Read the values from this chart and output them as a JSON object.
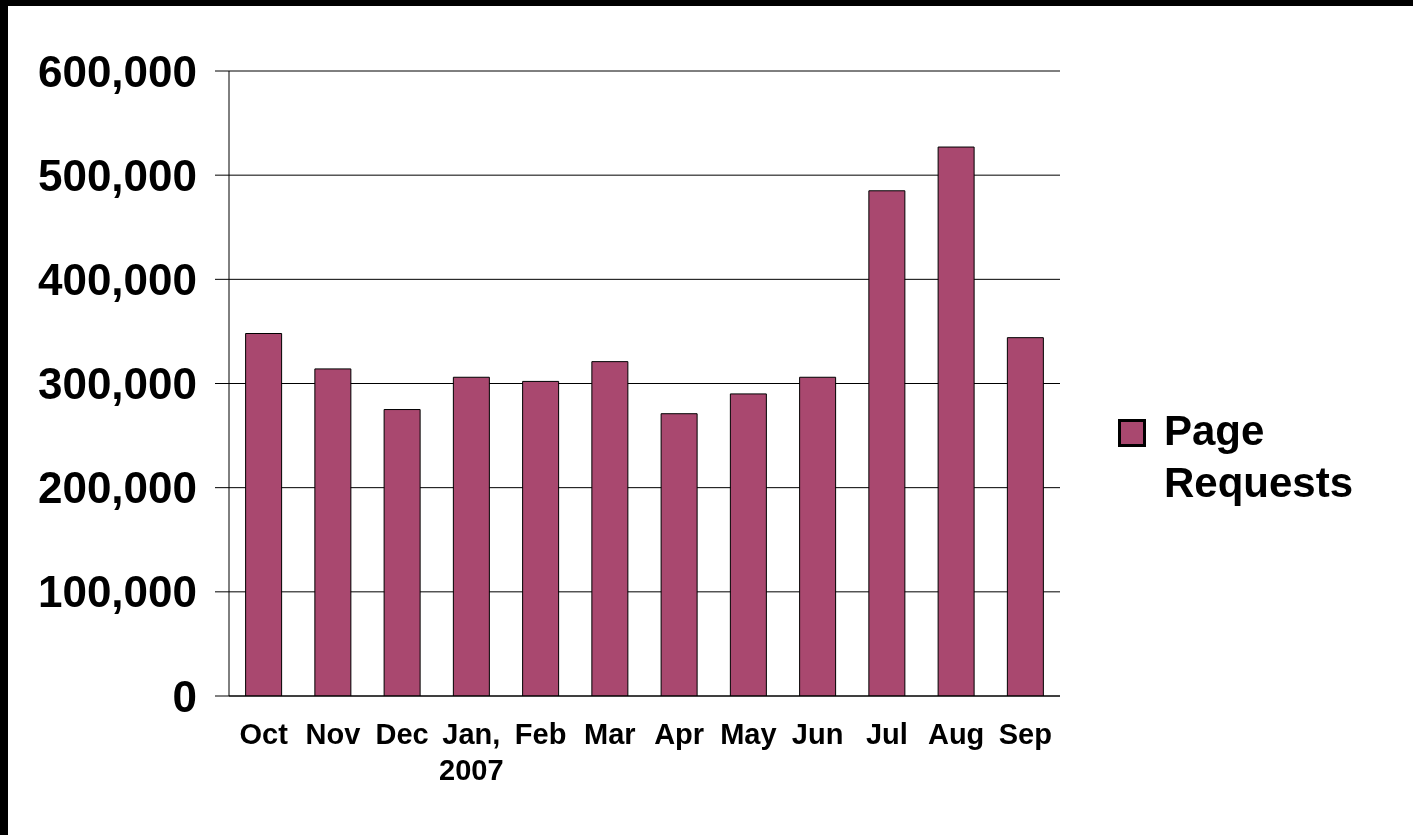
{
  "chart_data": {
    "type": "bar",
    "categories": [
      "Oct",
      "Nov",
      "Dec",
      "Jan, 2007",
      "Feb",
      "Mar",
      "Apr",
      "May",
      "Jun",
      "Jul",
      "Aug",
      "Sep"
    ],
    "series": [
      {
        "name": "Page Requests",
        "color": "#a9486f",
        "values": [
          348000,
          314000,
          275000,
          306000,
          302000,
          321000,
          271000,
          290000,
          306000,
          485000,
          527000,
          344000
        ]
      }
    ],
    "ylim": [
      0,
      600000
    ],
    "yticks": [
      0,
      {
        "value": 100000,
        "label": "100,000"
      },
      {
        "value": 200000,
        "label": "200,000"
      },
      {
        "value": 300000,
        "label": "300,000"
      },
      {
        "value": 400000,
        "label": "400,000"
      },
      {
        "value": 500000,
        "label": "500,000"
      },
      {
        "value": 600000,
        "label": "600,000"
      }
    ],
    "grid": "y",
    "legend": "right"
  }
}
